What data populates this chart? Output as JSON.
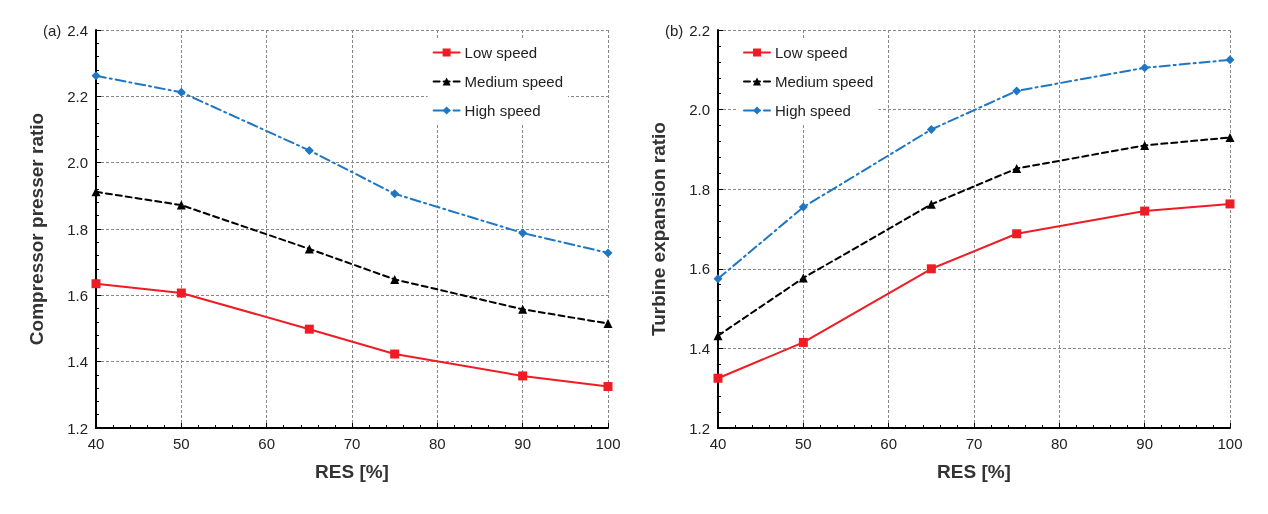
{
  "chart_data": [
    {
      "type": "line",
      "title": "(a)",
      "xlabel": "RES [%]",
      "ylabel": "Compressor presser ratio",
      "x": [
        40,
        50,
        65,
        75,
        90,
        100
      ],
      "xlim": [
        40,
        100
      ],
      "xticks": [
        40,
        50,
        60,
        70,
        80,
        90,
        100
      ],
      "ylim": [
        1.2,
        2.4
      ],
      "yticks": [
        1.2,
        1.4,
        1.6,
        1.8,
        {
          "value": 2,
          "label": "2.0"
        },
        2.2,
        2.4
      ],
      "grid": true,
      "legend": "top right",
      "series": [
        {
          "name": "Low speed",
          "color": "#ee1c24",
          "marker": "square",
          "line_style": "solid",
          "values": [
            1.635,
            1.607,
            1.498,
            1.423,
            1.357,
            1.325
          ]
        },
        {
          "name": "Medium speed",
          "color": "#000000",
          "marker": "triangle",
          "line_style": "dashed",
          "values": [
            1.912,
            1.872,
            1.74,
            1.648,
            1.558,
            1.515
          ]
        },
        {
          "name": "High speed",
          "color": "#1f77c4",
          "marker": "diamond",
          "line_style": "dashdot",
          "values": [
            2.262,
            2.212,
            2.037,
            1.906,
            1.788,
            1.728
          ]
        }
      ]
    },
    {
      "type": "line",
      "title": "(b)",
      "xlabel": "RES [%]",
      "ylabel": "Turbine expansion ratio",
      "x": [
        40,
        50,
        65,
        75,
        90,
        100
      ],
      "xlim": [
        40,
        100
      ],
      "xticks": [
        40,
        50,
        60,
        70,
        80,
        90,
        100
      ],
      "ylim": [
        1.2,
        2.2
      ],
      "yticks": [
        1.2,
        1.4,
        1.6,
        1.8,
        {
          "value": 2,
          "label": "2.0"
        },
        2.2
      ],
      "grid": true,
      "legend": "top left",
      "series": [
        {
          "name": "Low speed",
          "color": "#ee1c24",
          "marker": "square",
          "line_style": "solid",
          "values": [
            1.325,
            1.415,
            1.6,
            1.688,
            1.745,
            1.763
          ]
        },
        {
          "name": "Medium speed",
          "color": "#000000",
          "marker": "triangle",
          "line_style": "dashed",
          "values": [
            1.432,
            1.577,
            1.762,
            1.852,
            1.91,
            1.93
          ]
        },
        {
          "name": "High speed",
          "color": "#1f77c4",
          "marker": "diamond",
          "line_style": "dashdot",
          "values": [
            1.575,
            1.755,
            1.95,
            2.047,
            2.105,
            2.125
          ]
        }
      ]
    }
  ]
}
